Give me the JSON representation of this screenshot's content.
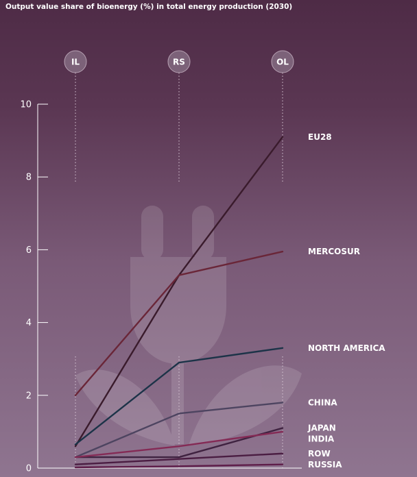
{
  "chart_data": {
    "type": "line",
    "title": "Output value share of bioenergy (%) in total energy production (2030)",
    "x": [
      "IL",
      "RS",
      "OL"
    ],
    "ylim": [
      0,
      10
    ],
    "yticks": [
      0,
      2,
      4,
      6,
      8,
      10
    ],
    "grid": false,
    "series": [
      {
        "name": "EU28",
        "values": [
          0.6,
          5.3,
          9.1
        ],
        "color": "#3a1b2c"
      },
      {
        "name": "MERCOSUR",
        "values": [
          2.0,
          5.3,
          5.95
        ],
        "color": "#6a2638"
      },
      {
        "name": "NORTH AMERICA",
        "values": [
          0.65,
          2.9,
          3.3
        ],
        "color": "#1c3348"
      },
      {
        "name": "CHINA",
        "values": [
          0.3,
          1.5,
          1.8
        ],
        "color": "#4d4460"
      },
      {
        "name": "JAPAN",
        "values": [
          0.3,
          0.3,
          1.1
        ],
        "color": "#3f2240"
      },
      {
        "name": "INDIA",
        "values": [
          0.3,
          0.6,
          1.0
        ],
        "color": "#842a55"
      },
      {
        "name": "ROW",
        "values": [
          0.1,
          0.25,
          0.4
        ],
        "color": "#4a1d42"
      },
      {
        "name": "RUSSIA",
        "values": [
          0.02,
          0.05,
          0.1
        ],
        "color": "#5e1d49"
      }
    ]
  },
  "colors": {
    "background_top": "#4e2b46",
    "background_bottom": "#8f7590",
    "watermark": "plug-and-leaves-icon"
  }
}
